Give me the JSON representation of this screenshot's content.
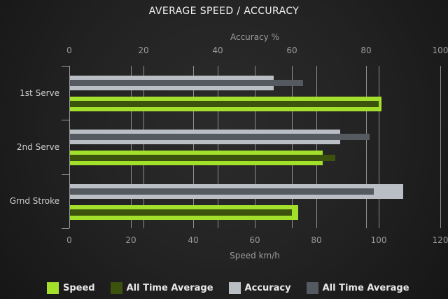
{
  "title": "AVERAGE SPEED / ACCURACY",
  "chart_data": {
    "type": "bar",
    "orientation": "horizontal",
    "categories": [
      "1st Serve",
      "2nd Serve",
      "Grnd Stroke"
    ],
    "axes": {
      "top": {
        "label": "Accuracy %",
        "min": 0,
        "max": 100,
        "ticks": [
          0,
          20,
          40,
          60,
          80,
          100
        ]
      },
      "bottom": {
        "label": "Speed km/h",
        "min": 0,
        "max": 120,
        "ticks": [
          0,
          20,
          40,
          60,
          80,
          100,
          120
        ]
      }
    },
    "grid": "vertical-lines-for-both-axes",
    "legend_position": "bottom",
    "series": [
      {
        "name": "Speed",
        "axis": "bottom",
        "role": "main",
        "color": "#a3e02c",
        "values": [
          101,
          82,
          74
        ]
      },
      {
        "name": "All Time Average",
        "axis": "bottom",
        "role": "overlay",
        "color": "#3b530c",
        "values": [
          100,
          86,
          72
        ]
      },
      {
        "name": "Accuracy",
        "axis": "top",
        "role": "main",
        "color": "#b9bfc4",
        "values": [
          55,
          73,
          90
        ]
      },
      {
        "name": "All Time Average",
        "axis": "top",
        "role": "overlay",
        "color": "#555a61",
        "values": [
          63,
          81,
          82
        ]
      }
    ],
    "colors": {
      "background_center": "#2b2b2b",
      "background_edge": "#161616",
      "gridline": "#8f8f8f",
      "axis": "#9c9c9c",
      "title_text": "#f2f2f2",
      "tick_text": "#9b9b9b",
      "category_text": "#cccccc",
      "legend_text": "#e8e8e8"
    }
  }
}
